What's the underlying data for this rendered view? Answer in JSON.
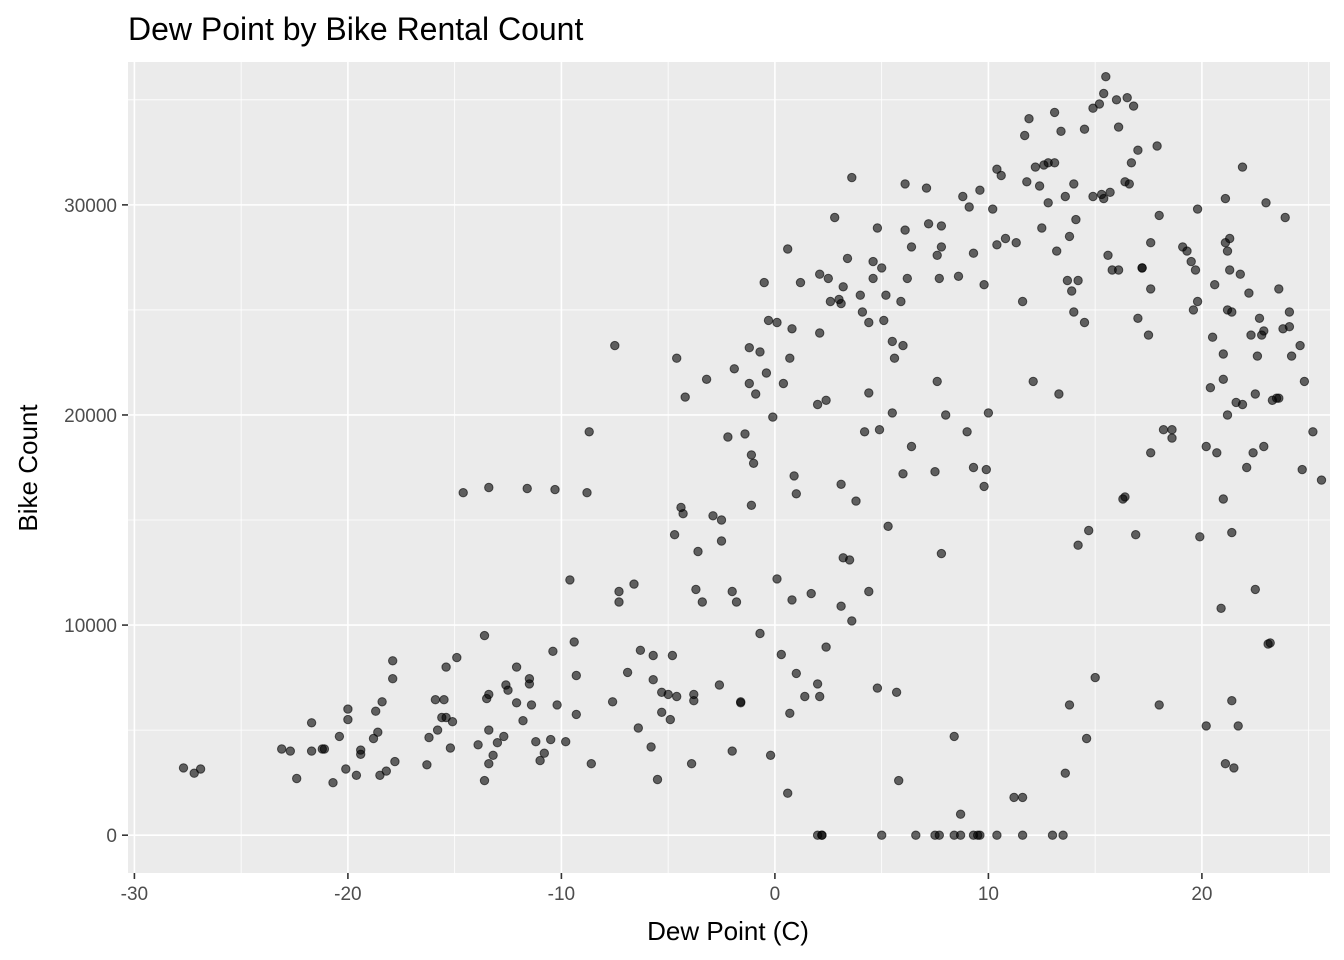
{
  "chart_data": {
    "type": "scatter",
    "title": "Dew Point by Bike Rental Count",
    "xlabel": "Dew Point (C)",
    "ylabel": "Bike Count",
    "xlim": [
      -30.3,
      26.0
    ],
    "ylim": [
      -1800,
      36800
    ],
    "x_ticks": [
      -30,
      -20,
      -10,
      0,
      10,
      20
    ],
    "x_tick_labels": [
      "-30",
      "-20",
      "-10",
      "0",
      "10",
      "20"
    ],
    "y_ticks": [
      0,
      10000,
      20000,
      30000
    ],
    "y_tick_labels": [
      "0",
      "10000",
      "20000",
      "30000"
    ],
    "grid": true,
    "panel_background": "#ebebeb",
    "point_color": "#000000",
    "point_alpha": 0.6,
    "points": [
      [
        -27.7,
        3200
      ],
      [
        -27.2,
        2950
      ],
      [
        -26.9,
        3150
      ],
      [
        -23.1,
        4100
      ],
      [
        -22.7,
        4000
      ],
      [
        -22.4,
        2700
      ],
      [
        -21.7,
        5350
      ],
      [
        -21.7,
        4000
      ],
      [
        -21.2,
        4100
      ],
      [
        -21.1,
        4100
      ],
      [
        -20.4,
        4700
      ],
      [
        -20.7,
        2500
      ],
      [
        -20.1,
        3150
      ],
      [
        -20.0,
        6000
      ],
      [
        -20.0,
        5500
      ],
      [
        -19.6,
        2850
      ],
      [
        -19.4,
        4050
      ],
      [
        -19.4,
        3850
      ],
      [
        -18.8,
        4600
      ],
      [
        -18.7,
        5900
      ],
      [
        -18.6,
        4900
      ],
      [
        -18.5,
        2850
      ],
      [
        -18.4,
        6350
      ],
      [
        -18.2,
        3050
      ],
      [
        -17.9,
        8300
      ],
      [
        -17.9,
        7450
      ],
      [
        -17.8,
        3500
      ],
      [
        -16.3,
        3350
      ],
      [
        -16.2,
        4650
      ],
      [
        -15.9,
        6450
      ],
      [
        -15.8,
        5000
      ],
      [
        -15.6,
        5600
      ],
      [
        -15.5,
        6450
      ],
      [
        -15.4,
        8000
      ],
      [
        -15.4,
        5600
      ],
      [
        -15.2,
        4150
      ],
      [
        -15.1,
        5400
      ],
      [
        -14.9,
        8450
      ],
      [
        -14.6,
        16300
      ],
      [
        -13.9,
        4300
      ],
      [
        -13.6,
        9500
      ],
      [
        -13.6,
        2600
      ],
      [
        -13.5,
        6500
      ],
      [
        -13.4,
        16550
      ],
      [
        -13.4,
        6700
      ],
      [
        -13.4,
        5000
      ],
      [
        -13.4,
        3400
      ],
      [
        -13.2,
        3800
      ],
      [
        -13.0,
        4400
      ],
      [
        -12.7,
        4700
      ],
      [
        -12.6,
        7150
      ],
      [
        -12.5,
        6900
      ],
      [
        -12.1,
        6300
      ],
      [
        -12.1,
        8000
      ],
      [
        -11.8,
        5450
      ],
      [
        -11.6,
        16500
      ],
      [
        -11.5,
        7450
      ],
      [
        -11.5,
        7200
      ],
      [
        -11.4,
        6200
      ],
      [
        -11.2,
        4450
      ],
      [
        -11.0,
        3550
      ],
      [
        -10.8,
        3900
      ],
      [
        -10.5,
        4550
      ],
      [
        -10.4,
        8750
      ],
      [
        -10.3,
        16450
      ],
      [
        -10.2,
        6200
      ],
      [
        -9.8,
        4450
      ],
      [
        -9.6,
        12150
      ],
      [
        -9.4,
        9200
      ],
      [
        -9.3,
        5750
      ],
      [
        -9.3,
        7600
      ],
      [
        -8.8,
        16300
      ],
      [
        -8.7,
        19200
      ],
      [
        -8.6,
        3400
      ],
      [
        -7.6,
        6350
      ],
      [
        -7.5,
        23300
      ],
      [
        -7.3,
        11600
      ],
      [
        -7.3,
        11100
      ],
      [
        -6.9,
        7750
      ],
      [
        -6.6,
        11950
      ],
      [
        -6.4,
        5100
      ],
      [
        -6.3,
        8800
      ],
      [
        -5.8,
        4200
      ],
      [
        -5.7,
        8550
      ],
      [
        -5.7,
        7400
      ],
      [
        -5.5,
        2650
      ],
      [
        -5.3,
        6800
      ],
      [
        -5.3,
        5850
      ],
      [
        -5.0,
        6700
      ],
      [
        -4.9,
        5500
      ],
      [
        -4.8,
        8550
      ],
      [
        -4.7,
        14300
      ],
      [
        -4.6,
        6600
      ],
      [
        -4.6,
        22700
      ],
      [
        -4.4,
        15600
      ],
      [
        -4.3,
        15300
      ],
      [
        -4.2,
        20850
      ],
      [
        -3.9,
        3400
      ],
      [
        -3.8,
        6700
      ],
      [
        -3.8,
        6400
      ],
      [
        -3.7,
        11700
      ],
      [
        -3.6,
        13500
      ],
      [
        -3.4,
        11100
      ],
      [
        -3.2,
        21700
      ],
      [
        -2.9,
        15200
      ],
      [
        -2.6,
        7150
      ],
      [
        -2.5,
        14000
      ],
      [
        -2.5,
        15000
      ],
      [
        -2.2,
        18950
      ],
      [
        -2.0,
        11600
      ],
      [
        -2.0,
        4000
      ],
      [
        -1.9,
        22200
      ],
      [
        -1.8,
        11100
      ],
      [
        -1.6,
        6350
      ],
      [
        -1.6,
        6300
      ],
      [
        -1.4,
        19100
      ],
      [
        -1.2,
        23200
      ],
      [
        -1.2,
        21500
      ],
      [
        -1.1,
        15700
      ],
      [
        -1.1,
        18100
      ],
      [
        -1.0,
        17700
      ],
      [
        -0.9,
        21000
      ],
      [
        -0.7,
        9600
      ],
      [
        -0.7,
        23000
      ],
      [
        -0.5,
        26300
      ],
      [
        -0.4,
        22000
      ],
      [
        -0.3,
        24500
      ],
      [
        -0.2,
        3800
      ],
      [
        -0.1,
        19900
      ],
      [
        0.1,
        24400
      ],
      [
        0.1,
        12200
      ],
      [
        0.3,
        8600
      ],
      [
        0.4,
        21500
      ],
      [
        0.6,
        27900
      ],
      [
        0.7,
        22700
      ],
      [
        0.6,
        2000
      ],
      [
        0.7,
        5800
      ],
      [
        0.8,
        24100
      ],
      [
        0.8,
        11200
      ],
      [
        0.9,
        17100
      ],
      [
        1.0,
        7700
      ],
      [
        1.0,
        16250
      ],
      [
        1.2,
        26300
      ],
      [
        1.4,
        6600
      ],
      [
        1.7,
        11500
      ],
      [
        2.0,
        7200
      ],
      [
        2.0,
        20500
      ],
      [
        2.1,
        26700
      ],
      [
        2.1,
        23900
      ],
      [
        2.1,
        6600
      ],
      [
        2.2,
        0
      ],
      [
        2.4,
        20700
      ],
      [
        2.5,
        26500
      ],
      [
        2.4,
        8950
      ],
      [
        2.6,
        25400
      ],
      [
        2.8,
        29400
      ],
      [
        3.0,
        25500
      ],
      [
        3.1,
        25300
      ],
      [
        3.1,
        16700
      ],
      [
        3.1,
        10900
      ],
      [
        3.2,
        13200
      ],
      [
        3.2,
        26100
      ],
      [
        3.4,
        27450
      ],
      [
        3.5,
        13100
      ],
      [
        3.6,
        10200
      ],
      [
        3.6,
        31300
      ],
      [
        3.8,
        15900
      ],
      [
        4.0,
        25700
      ],
      [
        4.1,
        24900
      ],
      [
        4.2,
        19200
      ],
      [
        4.4,
        24400
      ],
      [
        4.4,
        21050
      ],
      [
        4.4,
        11600
      ],
      [
        4.6,
        27300
      ],
      [
        4.6,
        26500
      ],
      [
        4.8,
        7000
      ],
      [
        4.8,
        28900
      ],
      [
        4.9,
        19300
      ],
      [
        5.0,
        27000
      ],
      [
        5.1,
        24500
      ],
      [
        5.3,
        14700
      ],
      [
        5.2,
        25700
      ],
      [
        5.5,
        23500
      ],
      [
        5.5,
        20100
      ],
      [
        5.6,
        22700
      ],
      [
        5.7,
        6800
      ],
      [
        5.8,
        2600
      ],
      [
        5.9,
        25400
      ],
      [
        6.0,
        23300
      ],
      [
        6.0,
        17200
      ],
      [
        6.1,
        28800
      ],
      [
        6.1,
        31000
      ],
      [
        6.2,
        26500
      ],
      [
        6.4,
        28000
      ],
      [
        6.4,
        18500
      ],
      [
        7.1,
        30800
      ],
      [
        7.2,
        29100
      ],
      [
        7.5,
        17300
      ],
      [
        7.6,
        21600
      ],
      [
        7.6,
        27600
      ],
      [
        7.7,
        26500
      ],
      [
        7.8,
        29000
      ],
      [
        7.8,
        13400
      ],
      [
        7.8,
        28000
      ],
      [
        8.0,
        20000
      ],
      [
        8.4,
        4700
      ],
      [
        8.6,
        26600
      ],
      [
        8.8,
        30400
      ],
      [
        8.7,
        1000
      ],
      [
        9.0,
        19200
      ],
      [
        9.1,
        29900
      ],
      [
        9.3,
        17500
      ],
      [
        9.3,
        27700
      ],
      [
        9.6,
        30700
      ],
      [
        9.8,
        26200
      ],
      [
        9.8,
        16600
      ],
      [
        9.9,
        17400
      ],
      [
        10.0,
        20100
      ],
      [
        10.2,
        29800
      ],
      [
        10.4,
        31700
      ],
      [
        10.4,
        28100
      ],
      [
        10.6,
        31400
      ],
      [
        10.8,
        28400
      ],
      [
        11.2,
        1800
      ],
      [
        11.3,
        28200
      ],
      [
        11.6,
        25400
      ],
      [
        11.7,
        33300
      ],
      [
        11.8,
        31100
      ],
      [
        11.9,
        34100
      ],
      [
        12.1,
        21600
      ],
      [
        12.2,
        31800
      ],
      [
        12.4,
        30900
      ],
      [
        12.5,
        28900
      ],
      [
        12.6,
        31900
      ],
      [
        12.8,
        32000
      ],
      [
        12.8,
        30100
      ],
      [
        13.1,
        34400
      ],
      [
        13.1,
        32000
      ],
      [
        13.2,
        27800
      ],
      [
        13.3,
        21000
      ],
      [
        13.4,
        33500
      ],
      [
        13.6,
        30400
      ],
      [
        13.7,
        26400
      ],
      [
        13.8,
        28500
      ],
      [
        13.9,
        25900
      ],
      [
        14.0,
        31000
      ],
      [
        14.0,
        24900
      ],
      [
        14.1,
        29300
      ],
      [
        14.2,
        26400
      ],
      [
        14.5,
        24400
      ],
      [
        14.5,
        33600
      ],
      [
        14.9,
        34600
      ],
      [
        14.9,
        30400
      ],
      [
        15.2,
        34800
      ],
      [
        15.3,
        30500
      ],
      [
        15.4,
        30300
      ],
      [
        15.4,
        35300
      ],
      [
        15.5,
        36100
      ],
      [
        15.6,
        27600
      ],
      [
        15.7,
        30600
      ],
      [
        15.8,
        26900
      ],
      [
        16.0,
        35000
      ],
      [
        16.1,
        26900
      ],
      [
        16.1,
        33700
      ],
      [
        16.4,
        31100
      ],
      [
        16.5,
        35100
      ],
      [
        16.6,
        31000
      ],
      [
        16.7,
        32000
      ],
      [
        16.8,
        34700
      ],
      [
        17.0,
        32600
      ],
      [
        17.0,
        24600
      ],
      [
        17.2,
        27000
      ],
      [
        17.5,
        23800
      ],
      [
        17.6,
        26000
      ],
      [
        17.6,
        28200
      ],
      [
        17.9,
        32800
      ],
      [
        18.0,
        29500
      ],
      [
        18.2,
        19300
      ],
      [
        17.6,
        18200
      ],
      [
        18.0,
        6200
      ],
      [
        19.1,
        28000
      ],
      [
        19.3,
        27800
      ],
      [
        19.5,
        27300
      ],
      [
        19.6,
        25000
      ],
      [
        19.7,
        26900
      ],
      [
        19.8,
        25400
      ],
      [
        19.8,
        29800
      ],
      [
        19.9,
        14200
      ],
      [
        20.2,
        18500
      ],
      [
        20.4,
        21300
      ],
      [
        20.5,
        23700
      ],
      [
        20.6,
        26200
      ],
      [
        20.7,
        18200
      ],
      [
        20.9,
        10800
      ],
      [
        21.0,
        21700
      ],
      [
        21.0,
        22900
      ],
      [
        21.0,
        16000
      ],
      [
        21.1,
        3400
      ],
      [
        21.1,
        30300
      ],
      [
        21.1,
        28200
      ],
      [
        21.2,
        27800
      ],
      [
        21.2,
        25000
      ],
      [
        21.2,
        20000
      ],
      [
        21.3,
        28400
      ],
      [
        21.3,
        26900
      ],
      [
        21.4,
        24900
      ],
      [
        21.4,
        14400
      ],
      [
        21.4,
        6400
      ],
      [
        21.5,
        3200
      ],
      [
        21.6,
        20600
      ],
      [
        21.8,
        26700
      ],
      [
        21.9,
        20500
      ],
      [
        21.9,
        31800
      ],
      [
        22.1,
        17500
      ],
      [
        22.2,
        25800
      ],
      [
        22.3,
        23800
      ],
      [
        22.4,
        18200
      ],
      [
        22.5,
        21000
      ],
      [
        22.5,
        11700
      ],
      [
        22.6,
        22800
      ],
      [
        22.7,
        24600
      ],
      [
        22.8,
        23800
      ],
      [
        22.9,
        24000
      ],
      [
        22.9,
        18500
      ],
      [
        23.0,
        30100
      ],
      [
        23.1,
        9100
      ],
      [
        23.2,
        9150
      ],
      [
        23.3,
        20700
      ],
      [
        23.5,
        20800
      ],
      [
        23.6,
        26000
      ],
      [
        23.6,
        20800
      ],
      [
        23.8,
        24100
      ],
      [
        23.9,
        29400
      ],
      [
        24.1,
        24900
      ],
      [
        24.1,
        24200
      ],
      [
        24.2,
        22800
      ],
      [
        24.6,
        23300
      ],
      [
        24.7,
        17400
      ],
      [
        24.8,
        21600
      ],
      [
        25.2,
        19200
      ],
      [
        25.6,
        16900
      ],
      [
        20.2,
        5200
      ],
      [
        21.7,
        5200
      ],
      [
        13.6,
        2950
      ],
      [
        13.8,
        6200
      ],
      [
        14.2,
        13800
      ],
      [
        14.7,
        14500
      ],
      [
        14.6,
        4600
      ],
      [
        15.0,
        7500
      ],
      [
        11.6,
        1800
      ],
      [
        11.6,
        0
      ],
      [
        8.4,
        0
      ],
      [
        7.5,
        0
      ],
      [
        8.7,
        0
      ],
      [
        9.3,
        0
      ],
      [
        9.6,
        0
      ],
      [
        10.4,
        0
      ],
      [
        5.0,
        0
      ],
      [
        6.6,
        0
      ],
      [
        7.7,
        0
      ],
      [
        9.5,
        0
      ],
      [
        13.0,
        0
      ],
      [
        13.5,
        0
      ],
      [
        2.0,
        0
      ],
      [
        2.2,
        0
      ],
      [
        16.4,
        16100
      ],
      [
        16.3,
        16000
      ],
      [
        16.9,
        14300
      ],
      [
        17.2,
        27000
      ],
      [
        18.6,
        18900
      ],
      [
        18.6,
        19300
      ]
    ]
  }
}
